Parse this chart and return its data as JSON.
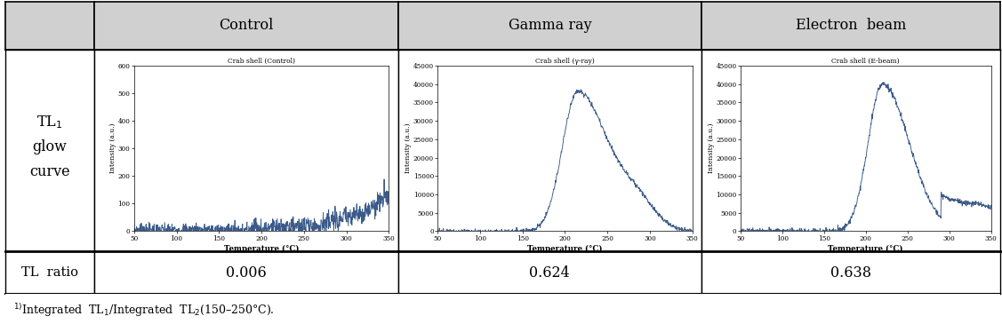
{
  "col_headers": [
    "Control",
    "Gamma ray",
    "Electron  beam"
  ],
  "tl_ratios": [
    "0.006",
    "0.624",
    "0.638"
  ],
  "chart_titles": [
    "Crab shell (Control)",
    "Crab shell (γ-ray)",
    "Crab shell (E-beam)"
  ],
  "ylabel": "Intensity (a.u.)",
  "xlabel": "Temperature (°C)",
  "header_bg": "#d0d0d0",
  "line_color": "#3a5a8a",
  "footnote": "$^{1)}$Integrated  TL$_1$/Integrated  TL$_2$(150–250°C).",
  "control_ylim": [
    0,
    600
  ],
  "control_yticks": [
    0,
    100,
    200,
    300,
    400,
    500,
    600
  ],
  "irrad_ylim": [
    0,
    45000
  ],
  "irrad_yticks": [
    0,
    5000,
    10000,
    15000,
    20000,
    25000,
    30000,
    35000,
    40000,
    45000
  ],
  "xlim": [
    50,
    350
  ],
  "xticks": [
    50,
    100,
    150,
    200,
    250,
    300,
    350
  ]
}
